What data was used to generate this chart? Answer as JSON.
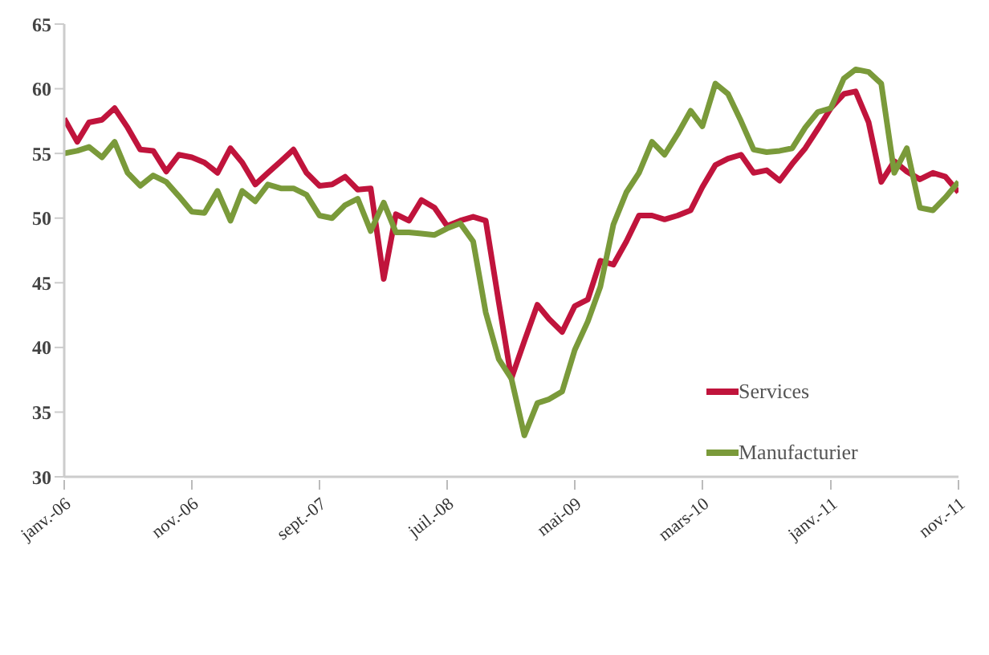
{
  "chart_data": {
    "type": "line",
    "x": [
      "2006-01",
      "2006-02",
      "2006-03",
      "2006-04",
      "2006-05",
      "2006-06",
      "2006-07",
      "2006-08",
      "2006-09",
      "2006-10",
      "2006-11",
      "2006-12",
      "2007-01",
      "2007-02",
      "2007-03",
      "2007-04",
      "2007-05",
      "2007-06",
      "2007-07",
      "2007-08",
      "2007-09",
      "2007-10",
      "2007-11",
      "2007-12",
      "2008-01",
      "2008-02",
      "2008-03",
      "2008-04",
      "2008-05",
      "2008-06",
      "2008-07",
      "2008-08",
      "2008-09",
      "2008-10",
      "2008-11",
      "2008-12",
      "2009-01",
      "2009-02",
      "2009-03",
      "2009-04",
      "2009-05",
      "2009-06",
      "2009-07",
      "2009-08",
      "2009-09",
      "2009-10",
      "2009-11",
      "2009-12",
      "2010-01",
      "2010-02",
      "2010-03",
      "2010-04",
      "2010-05",
      "2010-06",
      "2010-07",
      "2010-08",
      "2010-09",
      "2010-10",
      "2010-11",
      "2010-12",
      "2011-01",
      "2011-02",
      "2011-03",
      "2011-04",
      "2011-05",
      "2011-06",
      "2011-07",
      "2011-08",
      "2011-09",
      "2011-10",
      "2011-11"
    ],
    "series": [
      {
        "name": "Services",
        "color": "#c0143c",
        "values": [
          57.7,
          55.9,
          57.4,
          57.6,
          58.5,
          57.0,
          55.3,
          55.2,
          53.6,
          54.9,
          54.7,
          54.3,
          53.5,
          55.4,
          54.3,
          52.6,
          53.5,
          54.4,
          55.3,
          53.5,
          52.5,
          52.6,
          53.2,
          52.2,
          52.3,
          45.3,
          50.3,
          49.8,
          51.4,
          50.8,
          49.4,
          49.8,
          50.1,
          49.8,
          43.5,
          37.6,
          40.5,
          43.3,
          42.2,
          41.2,
          43.2,
          43.7,
          46.7,
          46.4,
          48.2,
          50.2,
          50.2,
          49.9,
          50.2,
          50.6,
          52.4,
          54.1,
          54.6,
          54.9,
          53.5,
          53.7,
          52.9,
          54.2,
          55.4,
          56.9,
          58.5,
          59.6,
          59.8,
          57.4,
          52.8,
          54.4,
          53.6,
          53.0,
          53.5,
          53.2,
          52.0
        ]
      },
      {
        "name": "Manufacturier",
        "color": "#7a9a3a",
        "values": [
          55.0,
          55.2,
          55.5,
          54.7,
          55.9,
          53.5,
          52.5,
          53.3,
          52.8,
          51.7,
          50.5,
          50.4,
          52.1,
          49.8,
          52.1,
          51.3,
          52.6,
          52.3,
          52.3,
          51.8,
          50.2,
          50.0,
          51.0,
          51.5,
          49.0,
          51.2,
          48.9,
          48.9,
          48.8,
          48.7,
          49.2,
          49.6,
          48.2,
          42.7,
          39.1,
          37.6,
          33.2,
          35.7,
          36.0,
          36.6,
          39.8,
          42.0,
          44.7,
          49.5,
          52.0,
          53.5,
          55.9,
          54.9,
          56.5,
          58.3,
          57.1,
          60.4,
          59.6,
          57.5,
          55.3,
          55.1,
          55.2,
          55.4,
          57.0,
          58.2,
          58.5,
          60.8,
          61.5,
          61.3,
          60.4,
          53.5,
          55.4,
          50.8,
          50.6,
          51.6,
          52.8
        ]
      }
    ],
    "xlim": [
      "2006-01",
      "2011-11"
    ],
    "xticks": [
      {
        "value": "2006-01",
        "label": "janv.-06"
      },
      {
        "value": "2006-11",
        "label": "nov.-06"
      },
      {
        "value": "2007-09",
        "label": "sept.-07"
      },
      {
        "value": "2008-07",
        "label": "juil.-08"
      },
      {
        "value": "2009-05",
        "label": "mai-09"
      },
      {
        "value": "2010-03",
        "label": "mars-10"
      },
      {
        "value": "2011-01",
        "label": "janv.-11"
      },
      {
        "value": "2011-11",
        "label": "nov.-11"
      }
    ],
    "ylim": [
      30,
      65
    ],
    "yticks": [
      30,
      35,
      40,
      45,
      50,
      55,
      60,
      65
    ],
    "legend": "right",
    "marker": "none",
    "line_style": "solid"
  }
}
